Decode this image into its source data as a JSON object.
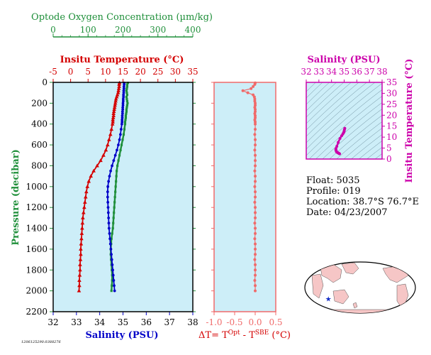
{
  "colors": {
    "panel_bg": "#cdeef8",
    "oxygen": "#1f8f3a",
    "temperature": "#d40000",
    "salinity": "#0000c8",
    "delta_t": "#f06a6a",
    "ts_diagram": "#cc00aa",
    "axis": "#000000"
  },
  "chart_data": [
    {
      "type": "scatter",
      "name": "profile",
      "ylabel": "Pressure (decibar)",
      "ylim": [
        2200,
        0
      ],
      "yticks": [
        "0",
        "200",
        "400",
        "600",
        "800",
        "1000",
        "1200",
        "1400",
        "1600",
        "1800",
        "2000",
        "2200"
      ],
      "yvalues": [
        0,
        200,
        400,
        600,
        800,
        1000,
        1200,
        1400,
        1600,
        1800,
        2000,
        2200
      ],
      "axes": {
        "oxygen": {
          "label": "Optode Oxygen Concentration (µm/kg)",
          "range": [
            0,
            400
          ],
          "ticks": [
            "0",
            "100",
            "200",
            "300",
            "400"
          ],
          "tickvalues": [
            0,
            100,
            200,
            300,
            400
          ]
        },
        "temperature": {
          "label": "Insitu Temperature (°C)",
          "range": [
            -5,
            35
          ],
          "ticks": [
            "-5",
            "0",
            "5",
            "10",
            "15",
            "20",
            "25",
            "30",
            "35"
          ],
          "tickvalues": [
            -5,
            0,
            5,
            10,
            15,
            20,
            25,
            30,
            35
          ]
        },
        "salinity": {
          "label": "Salinity (PSU)",
          "range": [
            32,
            38
          ],
          "ticks": [
            "32",
            "33",
            "34",
            "35",
            "36",
            "37",
            "38"
          ],
          "tickvalues": [
            32,
            33,
            34,
            35,
            36,
            37,
            38
          ]
        }
      },
      "series": [
        {
          "key": "oxygen",
          "points": [
            [
              214,
              5
            ],
            [
              212,
              20
            ],
            [
              212,
              40
            ],
            [
              211,
              60
            ],
            [
              210,
              80
            ],
            [
              211,
              100
            ],
            [
              212,
              120
            ],
            [
              210,
              140
            ],
            [
              211,
              160
            ],
            [
              212,
              180
            ],
            [
              213,
              200
            ],
            [
              212,
              220
            ],
            [
              211,
              240
            ],
            [
              210,
              260
            ],
            [
              210,
              280
            ],
            [
              209,
              300
            ],
            [
              208,
              320
            ],
            [
              208,
              340
            ],
            [
              207,
              360
            ],
            [
              206,
              380
            ],
            [
              206,
              400
            ],
            [
              204,
              450
            ],
            [
              202,
              500
            ],
            [
              199,
              550
            ],
            [
              196,
              600
            ],
            [
              193,
              650
            ],
            [
              190,
              700
            ],
            [
              187,
              750
            ],
            [
              184,
              800
            ],
            [
              182,
              850
            ],
            [
              181,
              900
            ],
            [
              180,
              950
            ],
            [
              179,
              1000
            ],
            [
              178,
              1050
            ],
            [
              177,
              1100
            ],
            [
              176,
              1150
            ],
            [
              175,
              1200
            ],
            [
              174,
              1250
            ],
            [
              173,
              1300
            ],
            [
              172,
              1350
            ],
            [
              171,
              1400
            ],
            [
              169,
              1450
            ],
            [
              167,
              1500
            ],
            [
              166,
              1550
            ],
            [
              165,
              1600
            ],
            [
              165,
              1650
            ],
            [
              166,
              1700
            ],
            [
              167,
              1750
            ],
            [
              168,
              1800
            ],
            [
              169,
              1850
            ],
            [
              169,
              1900
            ],
            [
              168,
              1950
            ],
            [
              167,
              2000
            ]
          ]
        },
        {
          "key": "temperature",
          "points": [
            [
              14.0,
              5
            ],
            [
              13.9,
              20
            ],
            [
              13.9,
              40
            ],
            [
              13.8,
              60
            ],
            [
              13.7,
              80
            ],
            [
              13.6,
              100
            ],
            [
              13.4,
              120
            ],
            [
              13.2,
              140
            ],
            [
              13.0,
              160
            ],
            [
              12.9,
              180
            ],
            [
              12.8,
              200
            ],
            [
              12.7,
              220
            ],
            [
              12.6,
              240
            ],
            [
              12.5,
              260
            ],
            [
              12.4,
              280
            ],
            [
              12.3,
              300
            ],
            [
              12.3,
              320
            ],
            [
              12.2,
              340
            ],
            [
              12.1,
              360
            ],
            [
              12.1,
              380
            ],
            [
              12.0,
              400
            ],
            [
              11.7,
              450
            ],
            [
              11.4,
              500
            ],
            [
              11.0,
              550
            ],
            [
              10.6,
              600
            ],
            [
              10.1,
              650
            ],
            [
              9.4,
              700
            ],
            [
              8.6,
              750
            ],
            [
              7.6,
              800
            ],
            [
              6.6,
              850
            ],
            [
              5.8,
              900
            ],
            [
              5.2,
              950
            ],
            [
              4.8,
              1000
            ],
            [
              4.5,
              1050
            ],
            [
              4.3,
              1100
            ],
            [
              4.1,
              1150
            ],
            [
              3.9,
              1200
            ],
            [
              3.7,
              1250
            ],
            [
              3.5,
              1300
            ],
            [
              3.4,
              1350
            ],
            [
              3.3,
              1400
            ],
            [
              3.2,
              1450
            ],
            [
              3.1,
              1500
            ],
            [
              3.0,
              1550
            ],
            [
              2.9,
              1600
            ],
            [
              2.9,
              1650
            ],
            [
              2.8,
              1700
            ],
            [
              2.7,
              1750
            ],
            [
              2.7,
              1800
            ],
            [
              2.6,
              1850
            ],
            [
              2.5,
              1900
            ],
            [
              2.5,
              1950
            ],
            [
              2.4,
              2000
            ]
          ]
        },
        {
          "key": "salinity",
          "points": [
            [
              35.05,
              5
            ],
            [
              35.05,
              20
            ],
            [
              35.04,
              40
            ],
            [
              35.04,
              60
            ],
            [
              35.03,
              80
            ],
            [
              35.03,
              100
            ],
            [
              35.02,
              120
            ],
            [
              35.02,
              140
            ],
            [
              35.01,
              160
            ],
            [
              35.01,
              180
            ],
            [
              35.0,
              200
            ],
            [
              35.0,
              220
            ],
            [
              34.99,
              240
            ],
            [
              34.99,
              260
            ],
            [
              34.98,
              280
            ],
            [
              34.98,
              300
            ],
            [
              34.97,
              320
            ],
            [
              34.97,
              340
            ],
            [
              34.96,
              360
            ],
            [
              34.96,
              380
            ],
            [
              34.95,
              400
            ],
            [
              34.92,
              450
            ],
            [
              34.89,
              500
            ],
            [
              34.85,
              550
            ],
            [
              34.8,
              600
            ],
            [
              34.74,
              650
            ],
            [
              34.67,
              700
            ],
            [
              34.6,
              750
            ],
            [
              34.53,
              800
            ],
            [
              34.47,
              850
            ],
            [
              34.42,
              900
            ],
            [
              34.38,
              950
            ],
            [
              34.35,
              1000
            ],
            [
              34.34,
              1050
            ],
            [
              34.34,
              1100
            ],
            [
              34.35,
              1150
            ],
            [
              34.36,
              1200
            ],
            [
              34.37,
              1250
            ],
            [
              34.38,
              1300
            ],
            [
              34.39,
              1350
            ],
            [
              34.4,
              1400
            ],
            [
              34.42,
              1450
            ],
            [
              34.44,
              1500
            ],
            [
              34.46,
              1550
            ],
            [
              34.48,
              1600
            ],
            [
              34.5,
              1650
            ],
            [
              34.52,
              1700
            ],
            [
              34.54,
              1750
            ],
            [
              34.56,
              1800
            ],
            [
              34.58,
              1850
            ],
            [
              34.6,
              1900
            ],
            [
              34.62,
              1950
            ],
            [
              34.64,
              2000
            ]
          ]
        }
      ]
    },
    {
      "type": "scatter",
      "name": "delta_t",
      "xlabel": "ΔT= T",
      "xlabel_sup1": "Opt",
      "xlabel_mid": " - T",
      "xlabel_sup2": "SBE",
      "xlabel_end": " (°C)",
      "xlim": [
        -1.0,
        0.5
      ],
      "xticks": [
        "-1.0",
        "-0.5",
        "0.0",
        "0.5"
      ],
      "xtickvalues": [
        -1.0,
        -0.5,
        0.0,
        0.5
      ],
      "ylim": [
        2200,
        0
      ],
      "points": [
        [
          0.0,
          5
        ],
        [
          -0.01,
          20
        ],
        [
          -0.05,
          40
        ],
        [
          -0.1,
          60
        ],
        [
          -0.3,
          80
        ],
        [
          -0.18,
          100
        ],
        [
          -0.05,
          120
        ],
        [
          -0.02,
          140
        ],
        [
          -0.01,
          160
        ],
        [
          -0.01,
          180
        ],
        [
          0.0,
          200
        ],
        [
          0.0,
          220
        ],
        [
          -0.01,
          240
        ],
        [
          0.0,
          260
        ],
        [
          0.0,
          280
        ],
        [
          -0.01,
          300
        ],
        [
          0.0,
          320
        ],
        [
          0.0,
          340
        ],
        [
          -0.01,
          360
        ],
        [
          0.0,
          380
        ],
        [
          0.0,
          400
        ],
        [
          0.0,
          450
        ],
        [
          -0.01,
          500
        ],
        [
          0.0,
          550
        ],
        [
          0.0,
          600
        ],
        [
          -0.01,
          650
        ],
        [
          0.0,
          700
        ],
        [
          0.0,
          750
        ],
        [
          0.0,
          800
        ],
        [
          -0.01,
          850
        ],
        [
          0.0,
          900
        ],
        [
          0.0,
          950
        ],
        [
          -0.01,
          1000
        ],
        [
          0.0,
          1050
        ],
        [
          0.0,
          1100
        ],
        [
          -0.01,
          1150
        ],
        [
          0.0,
          1200
        ],
        [
          0.0,
          1250
        ],
        [
          0.0,
          1300
        ],
        [
          -0.01,
          1350
        ],
        [
          0.0,
          1400
        ],
        [
          0.0,
          1450
        ],
        [
          -0.01,
          1500
        ],
        [
          0.0,
          1550
        ],
        [
          0.0,
          1600
        ],
        [
          0.0,
          1650
        ],
        [
          -0.01,
          1700
        ],
        [
          0.0,
          1750
        ],
        [
          0.0,
          1800
        ],
        [
          0.0,
          1850
        ],
        [
          -0.01,
          1900
        ],
        [
          0.0,
          1950
        ],
        [
          0.0,
          2000
        ]
      ]
    },
    {
      "type": "line",
      "name": "ts_diagram",
      "title": "Salinity (PSU)",
      "ylabel": "Insitu Temperature (°C)",
      "xlim": [
        32,
        38
      ],
      "ylim": [
        0,
        35
      ],
      "xticks": [
        "32",
        "33",
        "34",
        "35",
        "36",
        "37",
        "38"
      ],
      "xtickvalues": [
        32,
        33,
        34,
        35,
        36,
        37,
        38
      ],
      "yticks": [
        "0",
        "5",
        "10",
        "15",
        "20",
        "25",
        "30",
        "35"
      ],
      "ytickvalues": [
        0,
        5,
        10,
        15,
        20,
        25,
        30,
        35
      ],
      "points": [
        [
          35.05,
          14.0
        ],
        [
          35.02,
          13.4
        ],
        [
          35.0,
          12.8
        ],
        [
          34.98,
          12.3
        ],
        [
          34.95,
          12.0
        ],
        [
          34.89,
          11.4
        ],
        [
          34.8,
          10.6
        ],
        [
          34.67,
          9.4
        ],
        [
          34.53,
          7.6
        ],
        [
          34.42,
          5.8
        ],
        [
          34.35,
          4.8
        ],
        [
          34.34,
          4.3
        ],
        [
          34.36,
          3.9
        ],
        [
          34.38,
          3.5
        ],
        [
          34.4,
          3.3
        ],
        [
          34.44,
          3.1
        ],
        [
          34.48,
          2.9
        ],
        [
          34.52,
          2.8
        ],
        [
          34.56,
          2.7
        ],
        [
          34.6,
          2.5
        ],
        [
          34.64,
          2.4
        ]
      ]
    }
  ],
  "float_info": {
    "float": "Float:  5035",
    "profile": "Profile:  019",
    "location": "Location:  38.7°S  76.7°E",
    "date": "Date:  04/23/2007"
  },
  "map": {
    "marker_lat": -38.7,
    "marker_lon": 76.7
  },
  "footer_code": "1206125290.0388276"
}
